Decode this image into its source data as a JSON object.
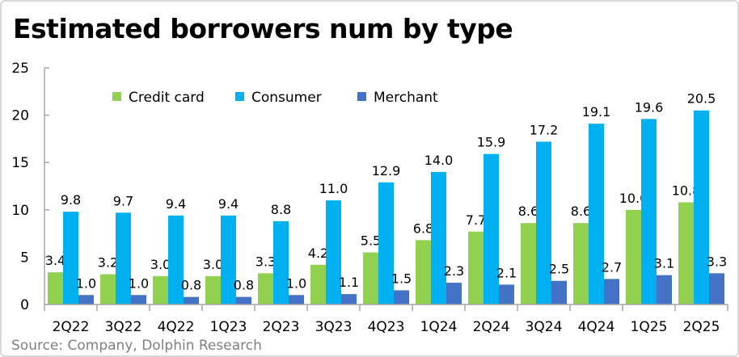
{
  "chart_data": {
    "type": "bar",
    "title": "Estimated borrowers num by type",
    "source": "Source: Company, Dolphin Research",
    "categories": [
      "2Q22",
      "3Q22",
      "4Q22",
      "1Q23",
      "2Q23",
      "3Q23",
      "4Q23",
      "1Q24",
      "2Q24",
      "3Q24",
      "4Q24",
      "1Q25",
      "2Q25"
    ],
    "series": [
      {
        "name": "Credit card",
        "color": "#92d050",
        "values": [
          3.4,
          3.2,
          3.0,
          3.0,
          3.3,
          4.2,
          5.5,
          6.8,
          7.7,
          8.6,
          8.6,
          10.0,
          10.8
        ]
      },
      {
        "name": "Consumer",
        "color": "#00b0f0",
        "values": [
          9.8,
          9.7,
          9.4,
          9.4,
          8.8,
          11.0,
          12.9,
          14.0,
          15.9,
          17.2,
          19.1,
          19.6,
          20.5
        ]
      },
      {
        "name": "Merchant",
        "color": "#4472c4",
        "values": [
          1.0,
          1.0,
          0.8,
          0.8,
          1.0,
          1.1,
          1.5,
          2.3,
          2.1,
          2.5,
          2.7,
          3.1,
          3.3
        ]
      }
    ],
    "ylim": [
      0,
      25
    ],
    "yticks": [
      0,
      5,
      10,
      15,
      20,
      25
    ],
    "grid": false,
    "legend": "top",
    "xlabel": "",
    "ylabel": ""
  }
}
